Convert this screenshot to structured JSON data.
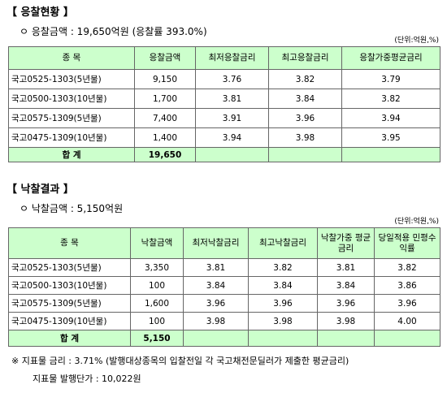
{
  "sections": [
    {
      "title": "【 응찰현황 】",
      "summary": "ㅇ 응찰금액 : 19,650억원 (응찰률 393.0%)",
      "unit": "(단위:억원,%)",
      "table": {
        "header": [
          "종 목",
          "응찰금액",
          "최저응찰금리",
          "최고응찰금리",
          "응찰가중평균금리"
        ],
        "rows": [
          [
            "국고0525-1303(5년물)",
            "9,150",
            "3.76",
            "3.82",
            "3.79"
          ],
          [
            "국고0500-1303(10년물)",
            "1,700",
            "3.81",
            "3.84",
            "3.82"
          ],
          [
            "국고0575-1309(5년물)",
            "7,400",
            "3.91",
            "3.96",
            "3.94"
          ],
          [
            "국고0475-1309(10년물)",
            "1,400",
            "3.94",
            "3.98",
            "3.95"
          ]
        ],
        "total": [
          "합 계",
          "19,650"
        ]
      }
    },
    {
      "title": "【 낙찰결과 】",
      "summary": "ㅇ 낙찰금액 : 5,150억원",
      "unit": "(단위:억원,%)",
      "table": {
        "header": [
          "종 목",
          "낙찰금액",
          "최저낙찰금리",
          "최고낙찰금리",
          "낙찰가중 평균금리",
          "당일적용 민평수익률"
        ],
        "rows": [
          [
            "국고0525-1303(5년물)",
            "3,350",
            "3.81",
            "3.82",
            "3.81",
            "3.82"
          ],
          [
            "국고0500-1303(10년물)",
            "100",
            "3.84",
            "3.84",
            "3.84",
            "3.86"
          ],
          [
            "국고0575-1309(5년물)",
            "1,600",
            "3.96",
            "3.96",
            "3.96",
            "3.96"
          ],
          [
            "국고0475-1309(10년물)",
            "100",
            "3.98",
            "3.98",
            "3.98",
            "4.00"
          ]
        ],
        "total": [
          "합 계",
          "5,150"
        ]
      }
    }
  ],
  "notes": [
    "※ 지표물 금리 : 3.71% (발행대상종목의 입찰전일 각 국고채전문딜러가 제출한 평균금리)",
    "지표물 발행단가 : 10,022원"
  ]
}
